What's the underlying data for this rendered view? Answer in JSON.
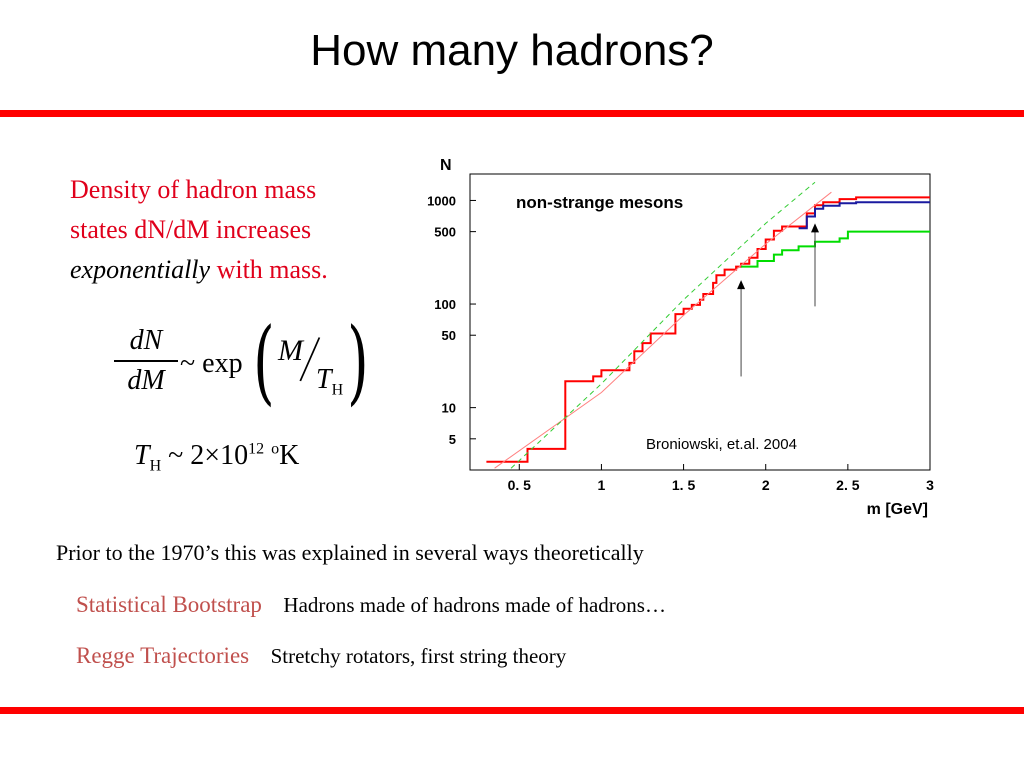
{
  "slide": {
    "title": "How many hadrons?",
    "colors": {
      "accent": "#ff0000",
      "red_text": "#e0001b",
      "term_color": "#c0504d"
    }
  },
  "intro": {
    "line1": "Density of hadron mass",
    "line2": "states dN/dM increases",
    "emph": "exponentially",
    "tail": "with mass."
  },
  "formula": {
    "numerator": "dN",
    "denominator": "dM",
    "tilde_exp": "~ exp",
    "m": "M",
    "t": "T",
    "t_sub": "H"
  },
  "temperature": {
    "t": "T",
    "t_sub": "H",
    "expr": "~ 2×10",
    "exp": "12",
    "deg": "o",
    "unit": "K"
  },
  "explanations": {
    "intro": "Prior to the 1970’s this was explained in several ways theoretically",
    "items": [
      {
        "term": "Statistical Bootstrap",
        "desc": "Hadrons made of hadrons made of hadrons…"
      },
      {
        "term": "Regge Trajectories",
        "desc": "Stretchy rotators, first string theory"
      }
    ]
  },
  "chart_data": {
    "type": "line",
    "title": "non-strange mesons",
    "xlabel": "m [GeV]",
    "ylabel": "N",
    "xlim": [
      0.2,
      3.0
    ],
    "ylim": [
      2.5,
      1800
    ],
    "log_y": true,
    "x_ticks": [
      "0. 5",
      "1",
      "1. 5",
      "2",
      "2. 5",
      "3"
    ],
    "x_tick_values": [
      0.5,
      1,
      1.5,
      2,
      2.5,
      3
    ],
    "y_ticks": [
      "5",
      "10",
      "50",
      "100",
      "500",
      "1000"
    ],
    "y_tick_values": [
      5,
      10,
      50,
      100,
      500,
      1000
    ],
    "annotation": "Broniowski, et.al. 2004",
    "series": [
      {
        "color": "#ff0000",
        "step": true,
        "points": [
          [
            0.3,
            3
          ],
          [
            0.55,
            3
          ],
          [
            0.55,
            4
          ],
          [
            0.78,
            4
          ],
          [
            0.78,
            18
          ],
          [
            0.95,
            18
          ],
          [
            0.95,
            20
          ],
          [
            1.0,
            20
          ],
          [
            1.0,
            23
          ],
          [
            1.17,
            23
          ],
          [
            1.17,
            27
          ],
          [
            1.2,
            27
          ],
          [
            1.2,
            35
          ],
          [
            1.25,
            35
          ],
          [
            1.25,
            42
          ],
          [
            1.3,
            42
          ],
          [
            1.3,
            52
          ],
          [
            1.45,
            52
          ],
          [
            1.45,
            80
          ],
          [
            1.5,
            80
          ],
          [
            1.5,
            90
          ],
          [
            1.55,
            90
          ],
          [
            1.55,
            98
          ],
          [
            1.6,
            98
          ],
          [
            1.6,
            110
          ],
          [
            1.62,
            110
          ],
          [
            1.62,
            125
          ],
          [
            1.68,
            125
          ],
          [
            1.68,
            160
          ],
          [
            1.7,
            160
          ],
          [
            1.7,
            190
          ],
          [
            1.75,
            190
          ],
          [
            1.75,
            215
          ],
          [
            1.82,
            215
          ],
          [
            1.82,
            230
          ],
          [
            1.85,
            230
          ],
          [
            1.85,
            245
          ],
          [
            1.9,
            245
          ],
          [
            1.9,
            280
          ],
          [
            1.95,
            280
          ],
          [
            1.95,
            340
          ],
          [
            2.0,
            340
          ],
          [
            2.0,
            420
          ],
          [
            2.05,
            420
          ],
          [
            2.05,
            510
          ],
          [
            2.1,
            510
          ],
          [
            2.1,
            560
          ],
          [
            2.25,
            560
          ],
          [
            2.25,
            750
          ],
          [
            2.3,
            750
          ],
          [
            2.3,
            900
          ],
          [
            2.35,
            900
          ],
          [
            2.35,
            960
          ],
          [
            2.45,
            960
          ],
          [
            2.45,
            1030
          ],
          [
            2.55,
            1030
          ],
          [
            2.55,
            1070
          ],
          [
            3.0,
            1070
          ]
        ]
      },
      {
        "color": "#1a1aa0",
        "step": true,
        "points": [
          [
            2.2,
            540
          ],
          [
            2.25,
            540
          ],
          [
            2.25,
            700
          ],
          [
            2.3,
            700
          ],
          [
            2.3,
            830
          ],
          [
            2.35,
            830
          ],
          [
            2.35,
            890
          ],
          [
            2.45,
            890
          ],
          [
            2.45,
            940
          ],
          [
            2.55,
            940
          ],
          [
            2.55,
            960
          ],
          [
            3.0,
            960
          ]
        ]
      },
      {
        "color": "#00dd00",
        "step": true,
        "points": [
          [
            1.85,
            230
          ],
          [
            1.95,
            230
          ],
          [
            1.95,
            260
          ],
          [
            2.05,
            260
          ],
          [
            2.05,
            300
          ],
          [
            2.1,
            300
          ],
          [
            2.1,
            330
          ],
          [
            2.2,
            330
          ],
          [
            2.2,
            360
          ],
          [
            2.3,
            360
          ],
          [
            2.3,
            400
          ],
          [
            2.45,
            400
          ],
          [
            2.45,
            430
          ],
          [
            2.5,
            430
          ],
          [
            2.5,
            500
          ],
          [
            3.0,
            500
          ]
        ]
      },
      {
        "color": "#ff8080",
        "dash": "none",
        "points": [
          [
            0.35,
            2.6
          ],
          [
            1.0,
            14
          ],
          [
            1.5,
            78
          ],
          [
            2.0,
            380
          ],
          [
            2.4,
            1200
          ]
        ]
      },
      {
        "color": "#33cc33",
        "dash": "5,4",
        "points": [
          [
            0.45,
            2.6
          ],
          [
            1.0,
            17
          ],
          [
            1.5,
            110
          ],
          [
            2.0,
            600
          ],
          [
            2.3,
            1500
          ]
        ]
      }
    ],
    "arrows": [
      {
        "x": 1.85,
        "y_from": 20,
        "y_to": 170
      },
      {
        "x": 2.3,
        "y_from": 95,
        "y_to": 600
      }
    ]
  }
}
